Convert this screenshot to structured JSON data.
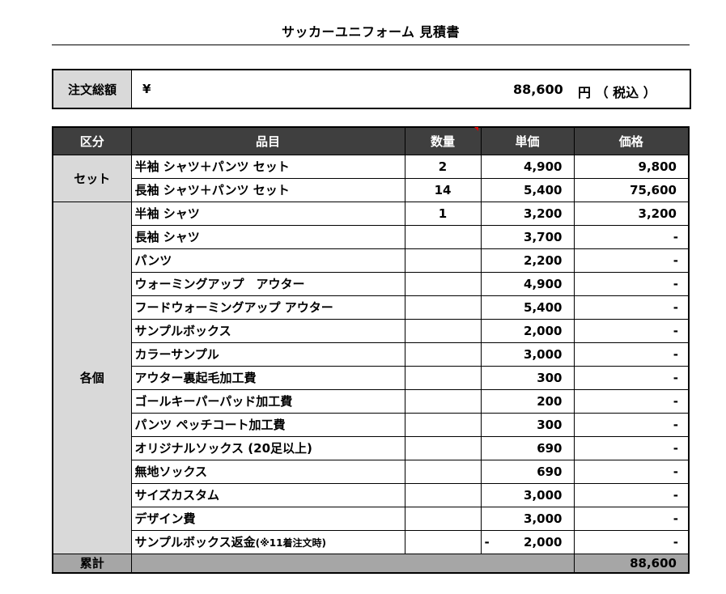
{
  "title": "サッカーユニフォーム 見積書",
  "order_total": {
    "label": "注文総額",
    "yen": "¥",
    "amount": "88,600",
    "unit": "円 （ 税込 ）"
  },
  "table": {
    "headers": [
      "区分",
      "品目",
      "数量",
      "単価",
      "価格"
    ],
    "groups": [
      {
        "category": "セット",
        "rows": [
          {
            "item": "半袖 シャツ＋パンツ セット",
            "qty": "2",
            "unit_price": "4,900",
            "price": "9,800"
          },
          {
            "item": "長袖 シャツ＋パンツ セット",
            "qty": "14",
            "unit_price": "5,400",
            "price": "75,600"
          }
        ]
      },
      {
        "category": "各個",
        "rows": [
          {
            "item": "半袖 シャツ",
            "qty": "1",
            "unit_price": "3,200",
            "price": "3,200"
          },
          {
            "item": "長袖 シャツ",
            "qty": "",
            "unit_price": "3,700",
            "price": "-"
          },
          {
            "item": "パンツ",
            "qty": "",
            "unit_price": "2,200",
            "price": "-"
          },
          {
            "item": "ウォーミングアップ　アウター",
            "qty": "",
            "unit_price": "4,900",
            "price": "-"
          },
          {
            "item": "フードウォーミングアップ アウター",
            "qty": "",
            "unit_price": "5,400",
            "price": "-"
          },
          {
            "item": "サンプルボックス",
            "qty": "",
            "unit_price": "2,000",
            "price": "-"
          },
          {
            "item": "カラーサンプル",
            "qty": "",
            "unit_price": "3,000",
            "price": "-"
          },
          {
            "item": "アウター裏起毛加工費",
            "qty": "",
            "unit_price": "300",
            "price": "-"
          },
          {
            "item": "ゴールキーパーパッド加工費",
            "qty": "",
            "unit_price": "200",
            "price": "-"
          },
          {
            "item": "パンツ ペッチコート加工費",
            "qty": "",
            "unit_price": "300",
            "price": "-"
          },
          {
            "item": "オリジナルソックス (20足以上)",
            "qty": "",
            "unit_price": "690",
            "price": "-"
          },
          {
            "item": "無地ソックス",
            "qty": "",
            "unit_price": "690",
            "price": "-"
          },
          {
            "item": "サイズカスタム",
            "qty": "",
            "unit_price": "3,000",
            "price": "-"
          },
          {
            "item": "デザイン費",
            "qty": "",
            "unit_price": "3,000",
            "price": "-"
          },
          {
            "item": "サンプルボックス返金",
            "item_note": "(※11着注文時)",
            "qty": "",
            "unit_price_sign": "-",
            "unit_price": "2,000",
            "price": "-"
          }
        ]
      }
    ],
    "summary": {
      "label": "累計",
      "total": "88,600"
    }
  },
  "colors": {
    "header_bg": "#3f3f3f",
    "category_bg": "#d9d9d9",
    "summary_bg": "#a6a6a6",
    "comment_marker": "#e00000"
  }
}
